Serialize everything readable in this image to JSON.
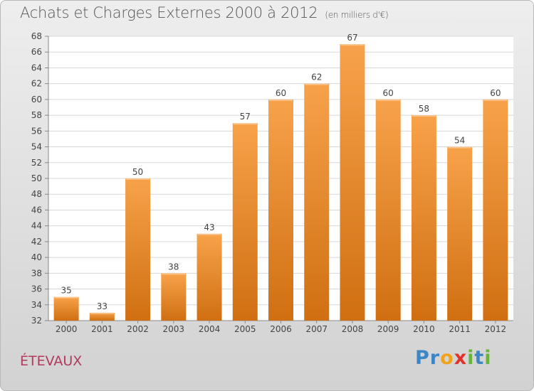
{
  "chart_data": {
    "type": "bar",
    "title": "Achats et Charges Externes 2000 à 2012",
    "subtitle": "(en milliers d'€)",
    "categories": [
      "2000",
      "2001",
      "2002",
      "2003",
      "2004",
      "2005",
      "2006",
      "2007",
      "2008",
      "2009",
      "2010",
      "2011",
      "2012"
    ],
    "values": [
      35,
      33,
      50,
      38,
      43,
      57,
      60,
      62,
      67,
      60,
      58,
      54,
      60
    ],
    "xlabel": "",
    "ylabel": "",
    "ylim": [
      32,
      68
    ],
    "yticks": [
      32,
      34,
      36,
      38,
      40,
      42,
      44,
      46,
      48,
      50,
      52,
      54,
      56,
      58,
      60,
      62,
      64,
      66,
      68
    ],
    "grid": true,
    "bar_color_top": "#f7a24a",
    "bar_color_bottom": "#d06f12"
  },
  "commune": "ÉTEVAUX",
  "logo": {
    "text": "Proxiti",
    "letters": [
      {
        "ch": "P",
        "color": "#3d86c6"
      },
      {
        "ch": "r",
        "color": "#3d86c6"
      },
      {
        "ch": "o",
        "color": "#f0a21a"
      },
      {
        "ch": "x",
        "color": "#e2312a"
      },
      {
        "ch": "i",
        "color": "#6bb33f"
      },
      {
        "ch": "t",
        "color": "#3d86c6"
      },
      {
        "ch": "i",
        "color": "#6bb33f"
      }
    ]
  }
}
